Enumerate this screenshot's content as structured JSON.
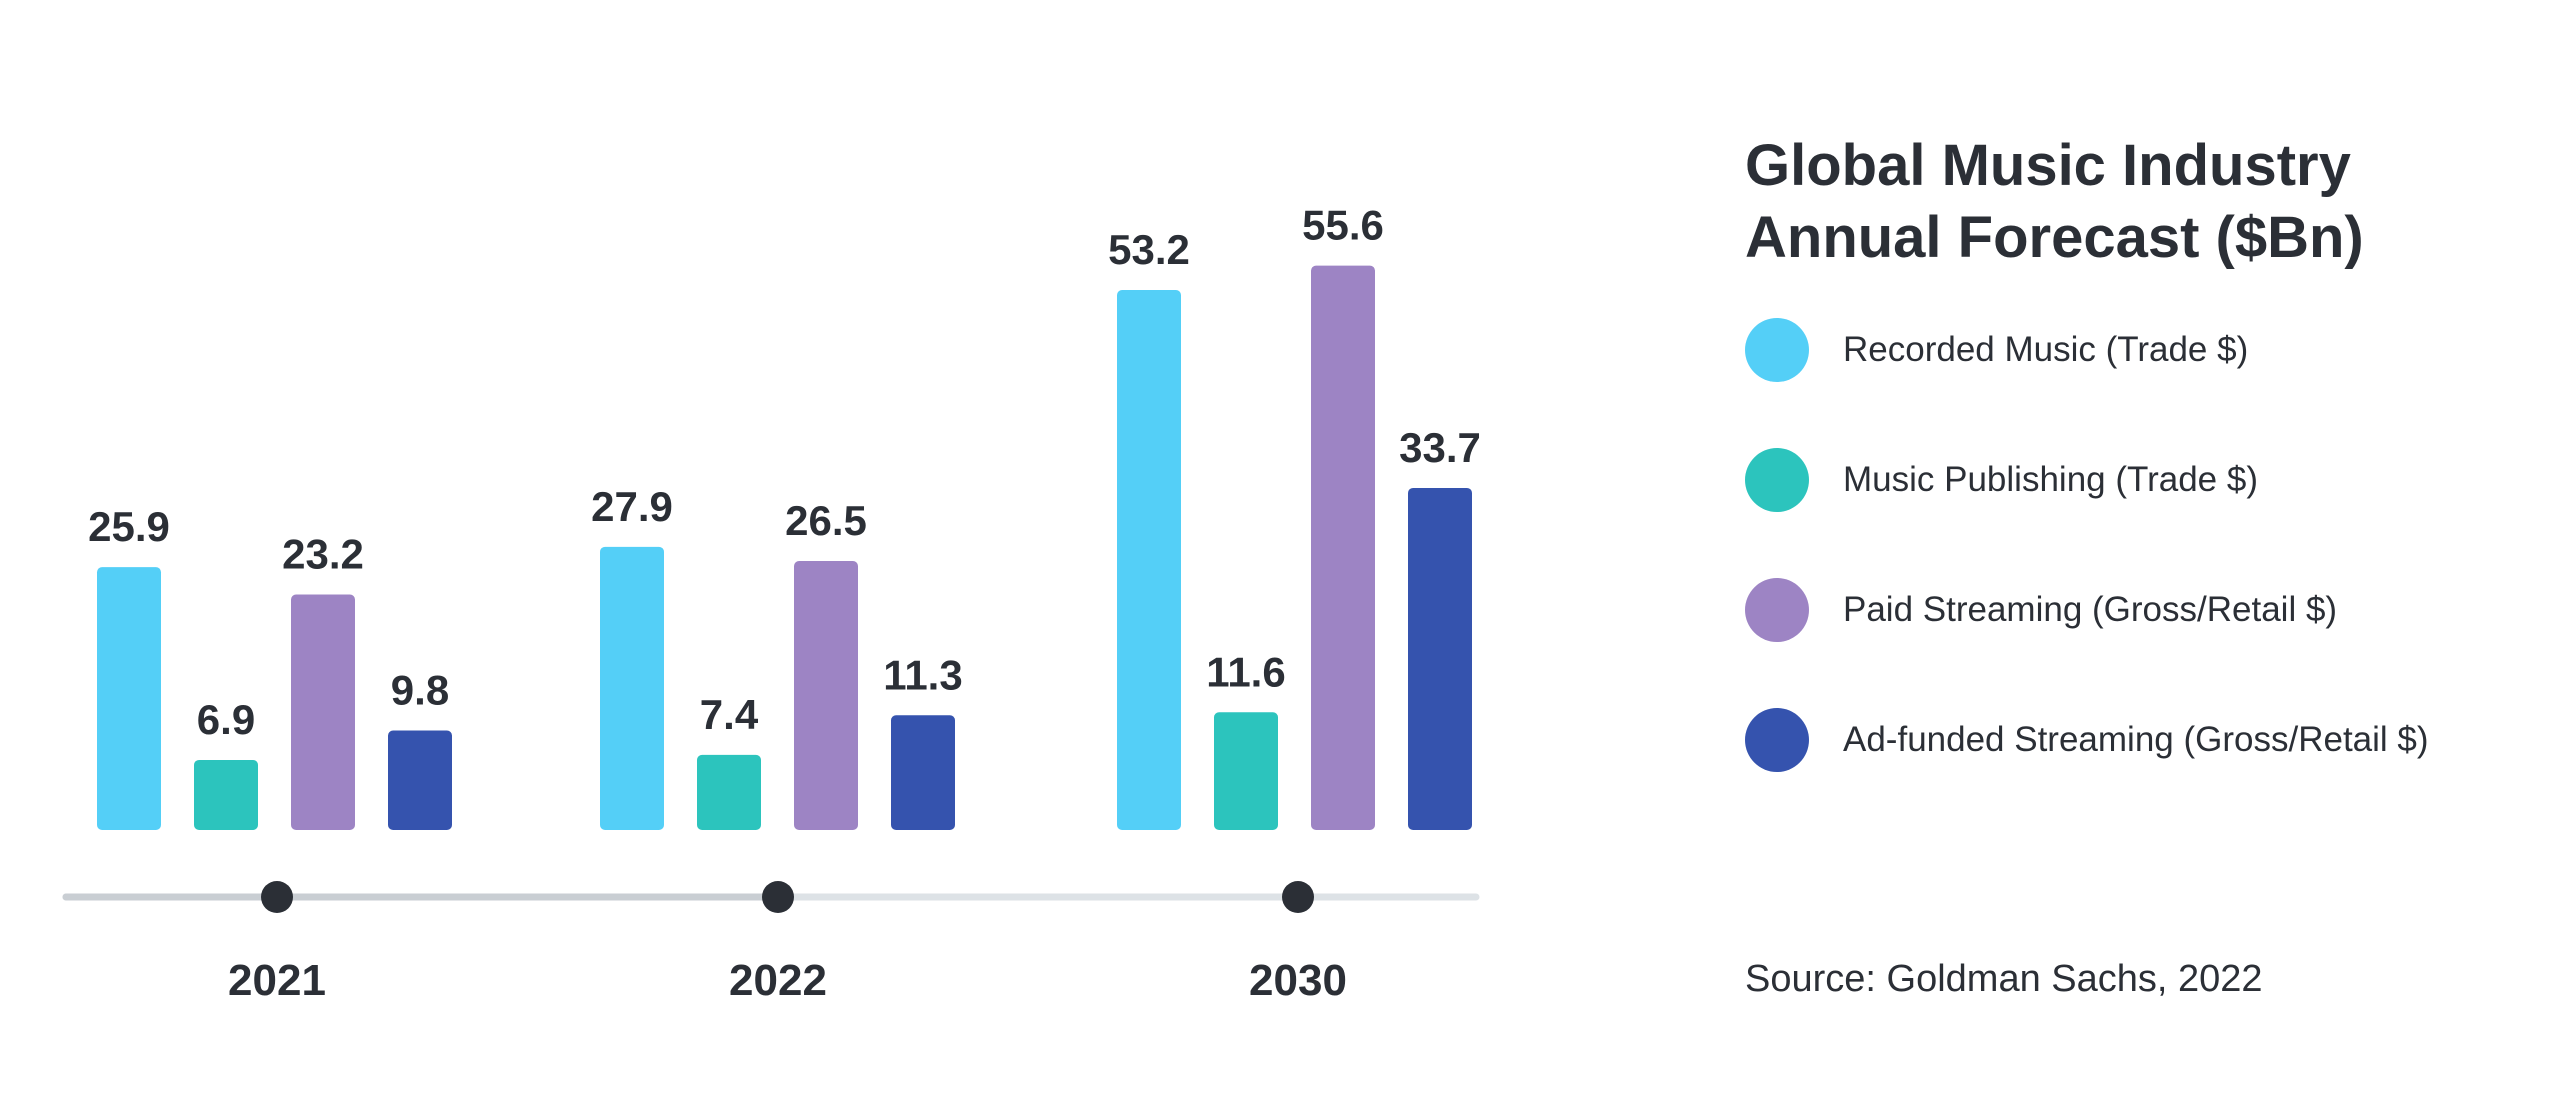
{
  "chart_data": {
    "type": "bar",
    "title": "Global Music Industry Annual Forecast ($Bn)",
    "categories": [
      "2021",
      "2022",
      "2030"
    ],
    "series": [
      {
        "name": "Recorded Music (Trade $)",
        "color": "#54cff7",
        "values": [
          25.9,
          27.9,
          53.2
        ]
      },
      {
        "name": "Music Publishing (Trade $)",
        "color": "#2cc4bd",
        "values": [
          6.9,
          7.4,
          11.6
        ]
      },
      {
        "name": "Paid Streaming (Gross/Retail $)",
        "color": "#9d84c4",
        "values": [
          23.2,
          26.5,
          55.6
        ]
      },
      {
        "name": "Ad-funded Streaming (Gross/Retail $)",
        "color": "#3553ae",
        "values": [
          9.8,
          11.3,
          33.7
        ]
      }
    ],
    "xlabel": "",
    "ylabel": "",
    "ylim": [
      0,
      60
    ],
    "grid": false,
    "legend_position": "right",
    "source": "Source: Goldman Sachs, 2022"
  },
  "timeline": {
    "line_color": "#dde2e6",
    "line_color_filled": "#c9ced3",
    "dot_color": "#2b2f36"
  },
  "text_color": "#2b2f36"
}
